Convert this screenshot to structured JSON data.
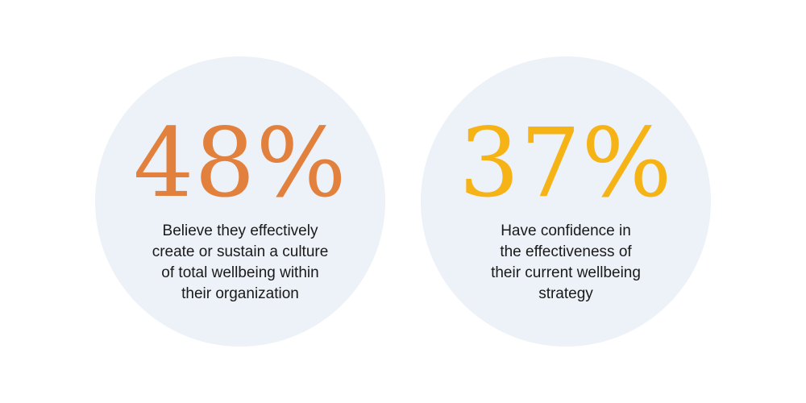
{
  "stats": [
    {
      "value": "48%",
      "color": "#e1813d",
      "caption_lines": [
        "Believe they effectively",
        "create or sustain a culture",
        "of total wellbeing within",
        "their organization"
      ]
    },
    {
      "value": "37%",
      "color": "#f6b316",
      "caption_lines": [
        "Have confidence in",
        "the effectiveness of",
        "their current wellbeing",
        "strategy"
      ]
    }
  ]
}
